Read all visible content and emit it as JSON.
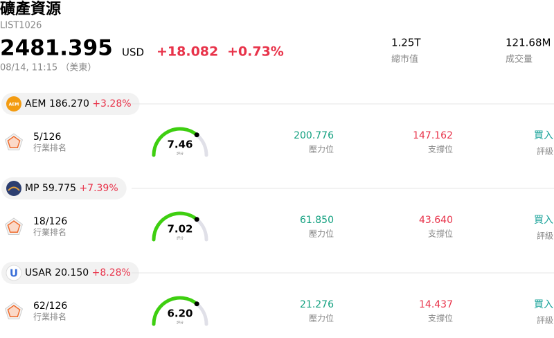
{
  "header": {
    "title": "礦產資源",
    "code": "LIST1026",
    "price": "2481.395",
    "currency": "USD",
    "change": "+18.082",
    "change_pct": "+0.73%",
    "date": "08/14, 11:15 （美東）",
    "stats": [
      {
        "value": "1.25T",
        "label": "總市值"
      },
      {
        "value": "121.68M",
        "label": "成交量"
      }
    ]
  },
  "stocks": [
    {
      "icon_text": "AEM",
      "symbol": "AEM",
      "price": "186.270",
      "change_pct": "+3.28%",
      "rank": "5/126",
      "rank_label": "行業排名",
      "score": "7.46",
      "score_label": "評分",
      "resistance": "200.776",
      "resistance_label": "壓力位",
      "support": "147.162",
      "support_label": "支撐位",
      "rating": "買入",
      "rating_label": "評級"
    },
    {
      "symbol": "MP",
      "price": "59.775",
      "change_pct": "+7.39%",
      "rank": "18/126",
      "rank_label": "行業排名",
      "score": "7.02",
      "score_label": "評分",
      "resistance": "61.850",
      "resistance_label": "壓力位",
      "support": "43.640",
      "support_label": "支撐位",
      "rating": "買入",
      "rating_label": "評級"
    },
    {
      "icon_text": "U",
      "symbol": "USAR",
      "price": "20.150",
      "change_pct": "+8.28%",
      "rank": "62/126",
      "rank_label": "行業排名",
      "score": "6.20",
      "score_label": "評分",
      "resistance": "21.276",
      "resistance_label": "壓力位",
      "support": "14.437",
      "support_label": "支撐位",
      "rating": "買入",
      "rating_label": "評級"
    }
  ]
}
